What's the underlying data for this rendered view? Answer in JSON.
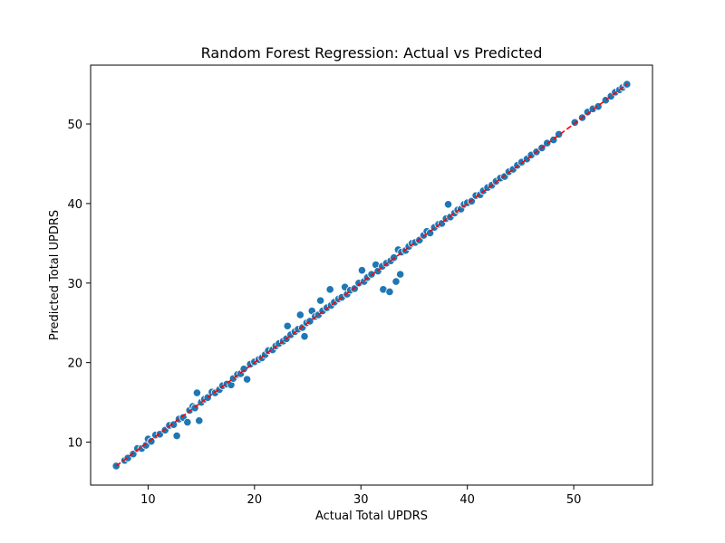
{
  "chart_data": {
    "type": "scatter",
    "title": "Random Forest Regression: Actual vs Predicted",
    "xlabel": "Actual Total UPDRS",
    "ylabel": "Predicted Total UPDRS",
    "xlim": [
      4.6,
      57.4
    ],
    "ylim": [
      4.6,
      57.4
    ],
    "xticks": [
      10,
      20,
      30,
      40,
      50
    ],
    "yticks": [
      10,
      20,
      30,
      40,
      50
    ],
    "grid": false,
    "point_color": "#1f77b4",
    "point_edge_color": "#ffffff",
    "reference_line": {
      "x": [
        7,
        55
      ],
      "y": [
        7,
        55
      ],
      "color": "#ff0000",
      "style": "dashed"
    },
    "points": [
      [
        7.0,
        7.0
      ],
      [
        7.8,
        7.7
      ],
      [
        8.1,
        8.0
      ],
      [
        8.6,
        8.5
      ],
      [
        9.0,
        9.2
      ],
      [
        9.4,
        9.2
      ],
      [
        9.8,
        9.6
      ],
      [
        10.0,
        10.4
      ],
      [
        10.3,
        10.1
      ],
      [
        10.7,
        10.9
      ],
      [
        11.1,
        11.0
      ],
      [
        11.6,
        11.5
      ],
      [
        12.0,
        12.1
      ],
      [
        12.4,
        12.2
      ],
      [
        12.7,
        10.8
      ],
      [
        12.9,
        12.9
      ],
      [
        13.3,
        13.1
      ],
      [
        13.7,
        12.5
      ],
      [
        13.9,
        14.0
      ],
      [
        14.2,
        14.5
      ],
      [
        14.4,
        14.3
      ],
      [
        14.6,
        16.2
      ],
      [
        14.8,
        12.7
      ],
      [
        15.0,
        15.0
      ],
      [
        15.3,
        15.4
      ],
      [
        15.6,
        15.6
      ],
      [
        16.0,
        16.3
      ],
      [
        16.3,
        16.2
      ],
      [
        16.7,
        16.6
      ],
      [
        17.0,
        17.1
      ],
      [
        17.4,
        17.3
      ],
      [
        17.8,
        17.2
      ],
      [
        18.0,
        18.0
      ],
      [
        18.4,
        18.5
      ],
      [
        18.7,
        18.6
      ],
      [
        19.0,
        19.2
      ],
      [
        19.3,
        17.9
      ],
      [
        19.6,
        19.8
      ],
      [
        20.0,
        20.1
      ],
      [
        20.4,
        20.4
      ],
      [
        20.7,
        20.6
      ],
      [
        21.0,
        21.0
      ],
      [
        21.3,
        21.5
      ],
      [
        21.7,
        21.6
      ],
      [
        22.0,
        22.1
      ],
      [
        22.3,
        22.4
      ],
      [
        22.7,
        22.7
      ],
      [
        23.0,
        23.0
      ],
      [
        23.1,
        24.6
      ],
      [
        23.4,
        23.5
      ],
      [
        23.8,
        23.9
      ],
      [
        24.1,
        24.2
      ],
      [
        24.3,
        26.0
      ],
      [
        24.5,
        24.4
      ],
      [
        24.7,
        23.3
      ],
      [
        24.9,
        25.0
      ],
      [
        25.2,
        25.2
      ],
      [
        25.4,
        26.5
      ],
      [
        25.7,
        25.8
      ],
      [
        26.0,
        26.0
      ],
      [
        26.2,
        27.8
      ],
      [
        26.4,
        26.5
      ],
      [
        26.8,
        26.9
      ],
      [
        27.1,
        29.2
      ],
      [
        27.2,
        27.2
      ],
      [
        27.5,
        27.6
      ],
      [
        27.9,
        28.0
      ],
      [
        28.2,
        28.2
      ],
      [
        28.5,
        29.5
      ],
      [
        28.7,
        28.6
      ],
      [
        29.0,
        29.1
      ],
      [
        29.4,
        29.3
      ],
      [
        29.8,
        30.0
      ],
      [
        30.1,
        31.6
      ],
      [
        30.3,
        30.2
      ],
      [
        30.6,
        30.7
      ],
      [
        31.0,
        31.1
      ],
      [
        31.4,
        32.3
      ],
      [
        31.6,
        31.5
      ],
      [
        32.0,
        32.1
      ],
      [
        32.1,
        29.2
      ],
      [
        32.4,
        32.5
      ],
      [
        32.7,
        28.9
      ],
      [
        32.8,
        32.8
      ],
      [
        33.1,
        33.2
      ],
      [
        33.3,
        30.2
      ],
      [
        33.5,
        34.2
      ],
      [
        33.7,
        31.1
      ],
      [
        33.8,
        33.9
      ],
      [
        34.2,
        34.1
      ],
      [
        34.5,
        34.6
      ],
      [
        34.8,
        35.0
      ],
      [
        35.1,
        35.1
      ],
      [
        35.5,
        35.4
      ],
      [
        35.9,
        36.0
      ],
      [
        36.2,
        36.5
      ],
      [
        36.5,
        36.3
      ],
      [
        36.9,
        37.0
      ],
      [
        37.3,
        37.4
      ],
      [
        37.6,
        37.5
      ],
      [
        38.0,
        38.1
      ],
      [
        38.2,
        39.9
      ],
      [
        38.4,
        38.3
      ],
      [
        38.8,
        38.8
      ],
      [
        39.1,
        39.2
      ],
      [
        39.4,
        39.3
      ],
      [
        39.7,
        39.9
      ],
      [
        40.0,
        40.1
      ],
      [
        40.4,
        40.3
      ],
      [
        40.8,
        41.0
      ],
      [
        41.2,
        41.1
      ],
      [
        41.5,
        41.6
      ],
      [
        41.9,
        42.0
      ],
      [
        42.3,
        42.3
      ],
      [
        42.7,
        42.8
      ],
      [
        43.1,
        43.2
      ],
      [
        43.5,
        43.4
      ],
      [
        43.9,
        44.0
      ],
      [
        44.3,
        44.3
      ],
      [
        44.7,
        44.8
      ],
      [
        45.1,
        45.2
      ],
      [
        45.6,
        45.6
      ],
      [
        46.0,
        46.1
      ],
      [
        46.5,
        46.5
      ],
      [
        47.0,
        47.0
      ],
      [
        47.5,
        47.6
      ],
      [
        48.1,
        48.0
      ],
      [
        48.6,
        48.7
      ],
      [
        50.1,
        50.2
      ],
      [
        50.8,
        50.8
      ],
      [
        51.3,
        51.5
      ],
      [
        51.8,
        51.9
      ],
      [
        52.3,
        52.2
      ],
      [
        53.0,
        53.0
      ],
      [
        53.5,
        53.5
      ],
      [
        53.9,
        54.0
      ],
      [
        54.3,
        54.3
      ],
      [
        54.6,
        54.6
      ],
      [
        54.9,
        54.9
      ],
      [
        55.0,
        55.0
      ]
    ]
  }
}
